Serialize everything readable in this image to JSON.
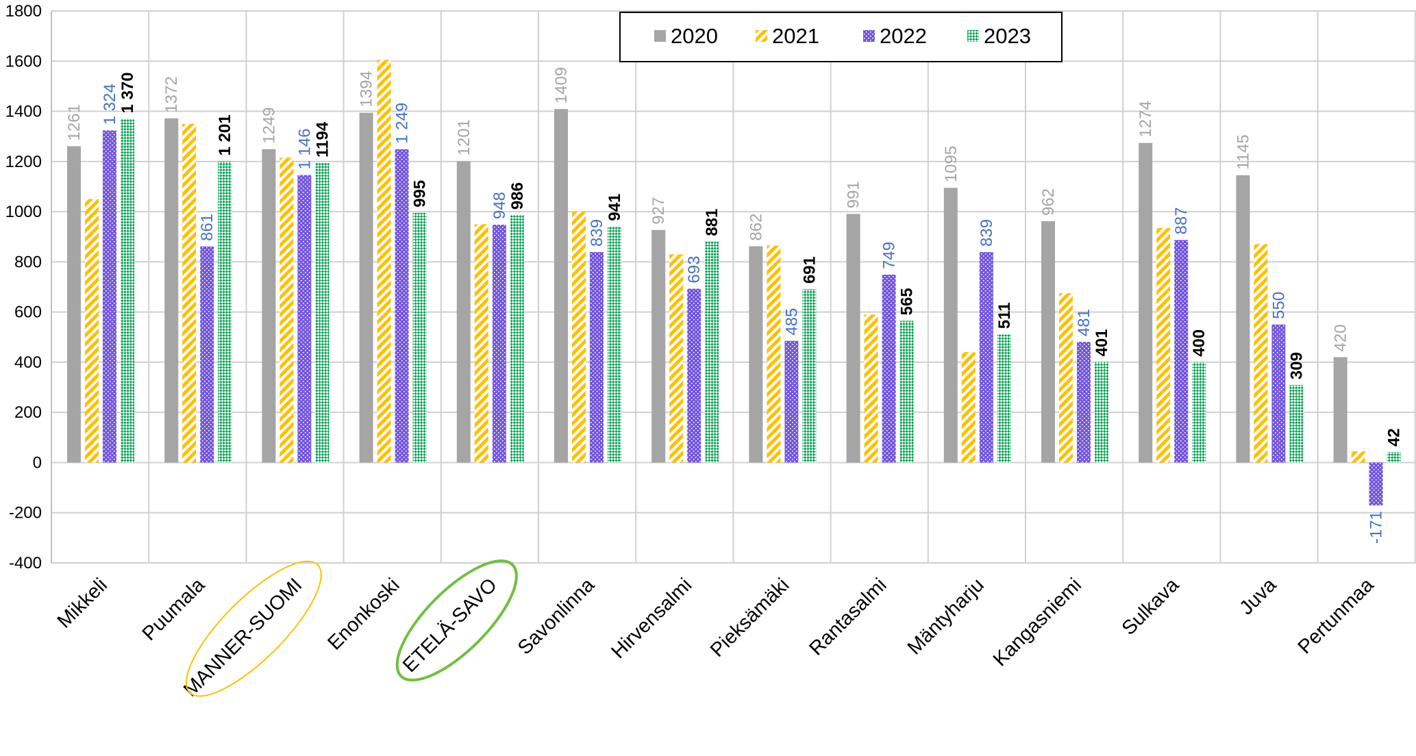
{
  "chart_data": {
    "type": "bar",
    "title": "",
    "xlabel": "",
    "ylabel": "",
    "ylim": [
      -400,
      1800
    ],
    "yticks": [
      -400,
      -200,
      0,
      200,
      400,
      600,
      800,
      1000,
      1200,
      1400,
      1600,
      1800
    ],
    "grid": true,
    "legend_position": "top-center",
    "categories": [
      "Mikkeli",
      "Puumala",
      "MANNER-SUOMI",
      "Enonkoski",
      "ETELÄ-SAVO",
      "Savonlinna",
      "Hirvensalmi",
      "Pieksämäki",
      "Rantasalmi",
      "Mäntyharju",
      "Kangasniemi",
      "Sulkava",
      "Juva",
      "Pertunmaa"
    ],
    "highlighted_categories": [
      {
        "name": "MANNER-SUOMI",
        "color": "#ffc000"
      },
      {
        "name": "ETELÄ-SAVO",
        "color": "#70c040"
      }
    ],
    "series": [
      {
        "name": "2020",
        "color": "#a5a5a5",
        "pattern": "solid",
        "values": [
          1261,
          1372,
          1249,
          1394,
          1201,
          1409,
          927,
          862,
          991,
          1095,
          962,
          1274,
          1145,
          420
        ],
        "labels": [
          "1261",
          "1372",
          "1249",
          "1394",
          "1201",
          "1409",
          "927",
          "862",
          "991",
          "1095",
          "962",
          "1274",
          "1145",
          "420"
        ],
        "label_color": "#a5a5a5",
        "label_weight": "normal"
      },
      {
        "name": "2021",
        "color": "#ffc000",
        "pattern": "diagonal-stripes",
        "values": [
          1050,
          1350,
          1215,
          1605,
          950,
          1000,
          830,
          865,
          590,
          440,
          675,
          935,
          870,
          45
        ],
        "labels": [],
        "label_color": "#ffc000",
        "label_weight": "normal"
      },
      {
        "name": "2022",
        "color": "#7356db",
        "pattern": "dotted",
        "values": [
          1324,
          861,
          1146,
          1249,
          948,
          839,
          693,
          485,
          749,
          839,
          481,
          887,
          550,
          -171
        ],
        "labels": [
          "1 324",
          "861",
          "1 146",
          "1 249",
          "948",
          "839",
          "693",
          "485",
          "749",
          "839",
          "481",
          "887",
          "550",
          "-171"
        ],
        "label_color": "#4472c4",
        "label_weight": "normal"
      },
      {
        "name": "2023",
        "color": "#00a050",
        "pattern": "diagonal-checker",
        "values": [
          1370,
          1201,
          1194,
          995,
          986,
          941,
          881,
          691,
          565,
          511,
          401,
          400,
          309,
          42
        ],
        "labels": [
          "1 370",
          "1 201",
          "1194",
          "995",
          "986",
          "941",
          "881",
          "691",
          "565",
          "511",
          "401",
          "400",
          "309",
          "42"
        ],
        "label_color": "#000000",
        "label_weight": "bold"
      }
    ]
  }
}
